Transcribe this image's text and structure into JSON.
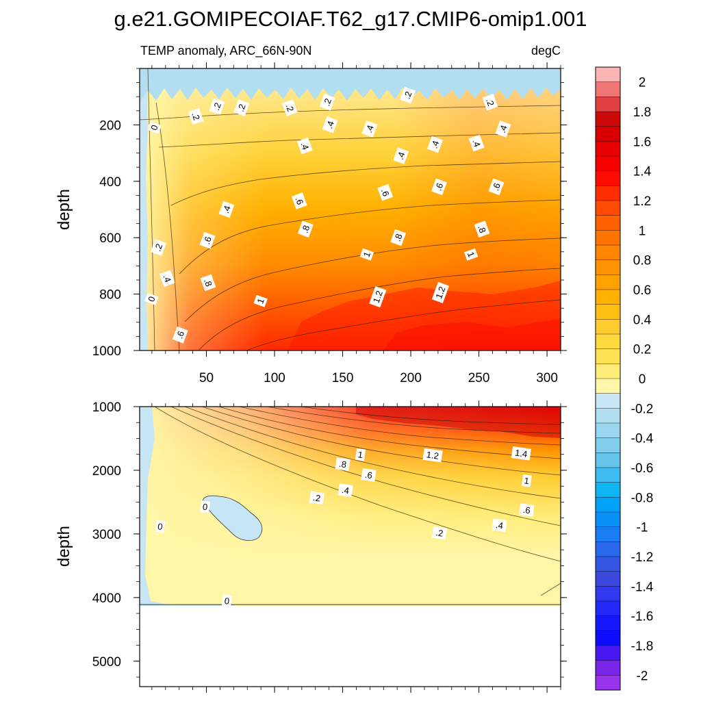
{
  "figure": {
    "title": "g.e21.GOMIPECOIAF.T62_g17.CMIP6-omip1.001",
    "subtitle_left": "TEMP anomaly, ARC_66N-90N",
    "subtitle_right": "degC"
  },
  "chart_data": [
    {
      "type": "heatmap",
      "name": "upper-panel",
      "xlim": [
        1,
        310
      ],
      "ylim": [
        1000,
        0
      ],
      "xticks": [
        50,
        100,
        150,
        200,
        250,
        300
      ],
      "yticks": [
        200,
        400,
        600,
        800,
        1000
      ],
      "xlabel": "",
      "ylabel": "depth",
      "contour_labels": [
        {
          "x": 12,
          "y": 210,
          "text": "0"
        },
        {
          "x": 42,
          "y": 170,
          "text": ".2"
        },
        {
          "x": 58,
          "y": 135,
          "text": ".2"
        },
        {
          "x": 76,
          "y": 140,
          "text": ".2"
        },
        {
          "x": 111,
          "y": 140,
          "text": ".2"
        },
        {
          "x": 139,
          "y": 120,
          "text": ".2"
        },
        {
          "x": 198,
          "y": 95,
          "text": ".2"
        },
        {
          "x": 258,
          "y": 120,
          "text": ".2"
        },
        {
          "x": 141,
          "y": 200,
          "text": ".4"
        },
        {
          "x": 170,
          "y": 215,
          "text": ".4"
        },
        {
          "x": 122,
          "y": 275,
          "text": ".4"
        },
        {
          "x": 193,
          "y": 310,
          "text": ".4"
        },
        {
          "x": 218,
          "y": 270,
          "text": ".4"
        },
        {
          "x": 248,
          "y": 265,
          "text": ".4"
        },
        {
          "x": 268,
          "y": 215,
          "text": ".4"
        },
        {
          "x": 65,
          "y": 500,
          "text": ".4"
        },
        {
          "x": 21,
          "y": 745,
          "text": ".4"
        },
        {
          "x": 15,
          "y": 635,
          "text": ".2"
        },
        {
          "x": 10,
          "y": 818,
          "text": "0"
        },
        {
          "x": 181,
          "y": 440,
          "text": ".6"
        },
        {
          "x": 221,
          "y": 420,
          "text": ".6"
        },
        {
          "x": 263,
          "y": 420,
          "text": ".6"
        },
        {
          "x": 118,
          "y": 470,
          "text": ".6"
        },
        {
          "x": 51,
          "y": 610,
          "text": ".6"
        },
        {
          "x": 31,
          "y": 945,
          "text": ".6"
        },
        {
          "x": 51,
          "y": 760,
          "text": ".8"
        },
        {
          "x": 123,
          "y": 570,
          "text": ".8"
        },
        {
          "x": 191,
          "y": 600,
          "text": ".8"
        },
        {
          "x": 252,
          "y": 570,
          "text": ".8"
        },
        {
          "x": 90,
          "y": 825,
          "text": "1"
        },
        {
          "x": 168,
          "y": 660,
          "text": "1"
        },
        {
          "x": 244,
          "y": 660,
          "text": "1"
        },
        {
          "x": 176,
          "y": 810,
          "text": "1.2"
        },
        {
          "x": 222,
          "y": 795,
          "text": "1.2"
        }
      ]
    },
    {
      "type": "heatmap",
      "name": "lower-panel",
      "xlim": [
        1,
        310
      ],
      "ylim": [
        5400,
        1000
      ],
      "xticks": [
        50,
        100,
        150,
        200,
        250,
        300
      ],
      "yticks": [
        1000,
        2000,
        3000,
        4000,
        5000
      ],
      "xlabel": "",
      "ylabel": "depth",
      "bottom_depth": 4110,
      "contour_labels": [
        {
          "x": 163,
          "y": 1760,
          "text": "1"
        },
        {
          "x": 216,
          "y": 1770,
          "text": "1.2"
        },
        {
          "x": 281,
          "y": 1740,
          "text": "1.4"
        },
        {
          "x": 150,
          "y": 1910,
          "text": ".8"
        },
        {
          "x": 169,
          "y": 2080,
          "text": ".6"
        },
        {
          "x": 285,
          "y": 2170,
          "text": "1"
        },
        {
          "x": 152,
          "y": 2320,
          "text": ".4"
        },
        {
          "x": 131,
          "y": 2440,
          "text": ".2"
        },
        {
          "x": 285,
          "y": 2630,
          "text": ".6"
        },
        {
          "x": 265,
          "y": 2870,
          "text": ".4"
        },
        {
          "x": 221,
          "y": 2990,
          "text": ".2"
        },
        {
          "x": 49,
          "y": 2580,
          "text": "0"
        },
        {
          "x": 16,
          "y": 2890,
          "text": "0"
        },
        {
          "x": 65,
          "y": 4060,
          "text": "0"
        }
      ]
    }
  ],
  "colorbar": {
    "min": -2.1,
    "max": 2.1,
    "step": 0.1,
    "labels": [
      "2",
      "1.8",
      "1.6",
      "1.4",
      "1.2",
      "1",
      "0.8",
      "0.6",
      "0.4",
      "0.2",
      "0",
      "-0.2",
      "-0.4",
      "-0.6",
      "-0.8",
      "-1",
      "-1.2",
      "-1.4",
      "-1.6",
      "-1.8",
      "-2"
    ],
    "colors_top_to_bottom": [
      "#fbb3b3",
      "#f07575",
      "#e04040",
      "#cc0a0a",
      "#d90000",
      "#e80000",
      "#f60000",
      "#ff0c00",
      "#ff2e00",
      "#ff4a00",
      "#ff6000",
      "#ff7400",
      "#ff8400",
      "#ff9400",
      "#ffa200",
      "#ffb000",
      "#ffbe12",
      "#ffcc30",
      "#ffd83e",
      "#ffe254",
      "#ffec78",
      "#fff6a8",
      "#c7e6f5",
      "#b2def2",
      "#9ad6ef",
      "#82cdec",
      "#64c4ec",
      "#3dbcf0",
      "#0fb4f5",
      "#00a2f7",
      "#0890f6",
      "#1a7cf2",
      "#2868ec",
      "#3456e4",
      "#3c48dc",
      "#2f3af0",
      "#2228f8",
      "#1416fc",
      "#0c0cfe",
      "#4a18f0",
      "#7a24e8",
      "#9a34ec"
    ]
  }
}
